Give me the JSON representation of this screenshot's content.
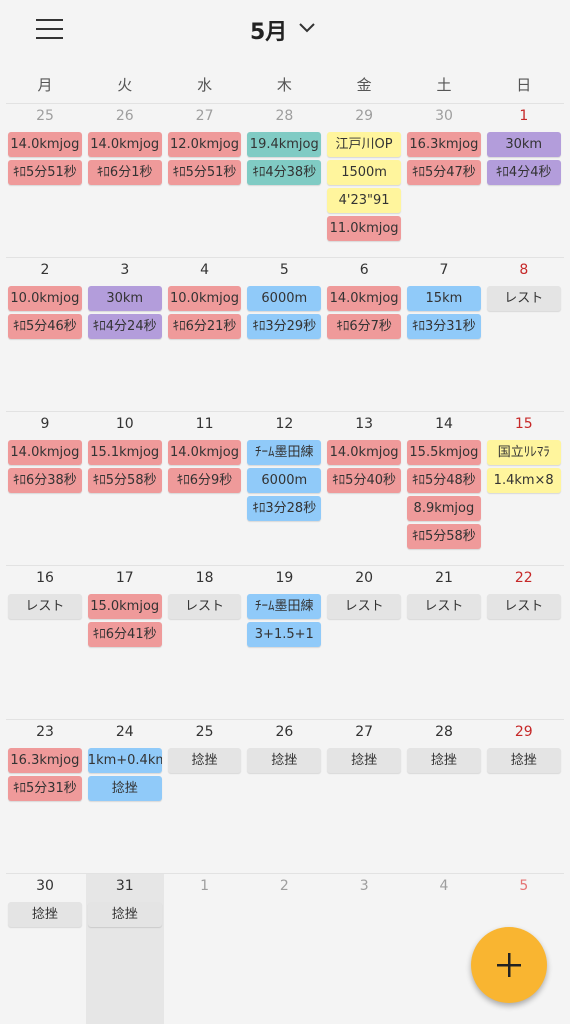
{
  "header": {
    "title": "5月"
  },
  "weekdays": [
    "月",
    "火",
    "水",
    "木",
    "金",
    "土",
    "日"
  ],
  "today": {
    "week": 5,
    "col": 1
  },
  "weeks": [
    [
      {
        "day": "25",
        "color": "#9e9e9e",
        "events": [
          {
            "text": "14.0kmjog",
            "color": "#ef9a9a"
          },
          {
            "text": "ｷﾛ5分51秒",
            "color": "#ef9a9a"
          }
        ]
      },
      {
        "day": "26",
        "color": "#9e9e9e",
        "events": [
          {
            "text": "14.0kmjog",
            "color": "#ef9a9a"
          },
          {
            "text": "ｷﾛ6分1秒",
            "color": "#ef9a9a"
          }
        ]
      },
      {
        "day": "27",
        "color": "#9e9e9e",
        "events": [
          {
            "text": "12.0kmjog",
            "color": "#ef9a9a"
          },
          {
            "text": "ｷﾛ5分51秒",
            "color": "#ef9a9a"
          }
        ]
      },
      {
        "day": "28",
        "color": "#9e9e9e",
        "events": [
          {
            "text": "19.4kmjog",
            "color": "#80cbc4"
          },
          {
            "text": "ｷﾛ4分38秒",
            "color": "#80cbc4"
          }
        ]
      },
      {
        "day": "29",
        "color": "#9e9e9e",
        "events": [
          {
            "text": "江戸川OP",
            "color": "#fff59d"
          },
          {
            "text": "1500m",
            "color": "#fff59d"
          },
          {
            "text": "4'23\"91",
            "color": "#fff59d"
          },
          {
            "text": "11.0kmjog",
            "color": "#ef9a9a"
          }
        ]
      },
      {
        "day": "30",
        "color": "#9e9e9e",
        "events": [
          {
            "text": "16.3kmjog",
            "color": "#ef9a9a"
          },
          {
            "text": "ｷﾛ5分47秒",
            "color": "#ef9a9a"
          }
        ]
      },
      {
        "day": "1",
        "color": "#c62828",
        "events": [
          {
            "text": "30km",
            "color": "#b39ddb"
          },
          {
            "text": "ｷﾛ4分4秒",
            "color": "#b39ddb"
          }
        ]
      }
    ],
    [
      {
        "day": "2",
        "color": "#333333",
        "events": [
          {
            "text": "10.0kmjog",
            "color": "#ef9a9a"
          },
          {
            "text": "ｷﾛ5分46秒",
            "color": "#ef9a9a"
          }
        ]
      },
      {
        "day": "3",
        "color": "#333333",
        "events": [
          {
            "text": "30km",
            "color": "#b39ddb"
          },
          {
            "text": "ｷﾛ4分24秒",
            "color": "#b39ddb"
          }
        ]
      },
      {
        "day": "4",
        "color": "#333333",
        "events": [
          {
            "text": "10.0kmjog",
            "color": "#ef9a9a"
          },
          {
            "text": "ｷﾛ6分21秒",
            "color": "#ef9a9a"
          }
        ]
      },
      {
        "day": "5",
        "color": "#333333",
        "events": [
          {
            "text": "6000m",
            "color": "#90caf9"
          },
          {
            "text": "ｷﾛ3分29秒",
            "color": "#90caf9"
          }
        ]
      },
      {
        "day": "6",
        "color": "#333333",
        "events": [
          {
            "text": "14.0kmjog",
            "color": "#ef9a9a"
          },
          {
            "text": "ｷﾛ6分7秒",
            "color": "#ef9a9a"
          }
        ]
      },
      {
        "day": "7",
        "color": "#333333",
        "events": [
          {
            "text": "15km",
            "color": "#90caf9"
          },
          {
            "text": "ｷﾛ3分31秒",
            "color": "#90caf9"
          }
        ]
      },
      {
        "day": "8",
        "color": "#c62828",
        "events": [
          {
            "text": "レスト",
            "color": "#e4e4e4"
          }
        ]
      }
    ],
    [
      {
        "day": "9",
        "color": "#333333",
        "events": [
          {
            "text": "14.0kmjog",
            "color": "#ef9a9a"
          },
          {
            "text": "ｷﾛ6分38秒",
            "color": "#ef9a9a"
          }
        ]
      },
      {
        "day": "10",
        "color": "#333333",
        "events": [
          {
            "text": "15.1kmjog",
            "color": "#ef9a9a"
          },
          {
            "text": "ｷﾛ5分58秒",
            "color": "#ef9a9a"
          }
        ]
      },
      {
        "day": "11",
        "color": "#333333",
        "events": [
          {
            "text": "14.0kmjog",
            "color": "#ef9a9a"
          },
          {
            "text": "ｷﾛ6分9秒",
            "color": "#ef9a9a"
          }
        ]
      },
      {
        "day": "12",
        "color": "#333333",
        "events": [
          {
            "text": "ﾁｰﾑ墨田練",
            "color": "#90caf9"
          },
          {
            "text": "6000m",
            "color": "#90caf9"
          },
          {
            "text": "ｷﾛ3分28秒",
            "color": "#90caf9"
          }
        ]
      },
      {
        "day": "13",
        "color": "#333333",
        "events": [
          {
            "text": "14.0kmjog",
            "color": "#ef9a9a"
          },
          {
            "text": "ｷﾛ5分40秒",
            "color": "#ef9a9a"
          }
        ]
      },
      {
        "day": "14",
        "color": "#333333",
        "events": [
          {
            "text": "15.5kmjog",
            "color": "#ef9a9a"
          },
          {
            "text": "ｷﾛ5分48秒",
            "color": "#ef9a9a"
          },
          {
            "text": "8.9kmjog",
            "color": "#ef9a9a"
          },
          {
            "text": "ｷﾛ5分58秒",
            "color": "#ef9a9a"
          }
        ]
      },
      {
        "day": "15",
        "color": "#c62828",
        "events": [
          {
            "text": "国立ﾘﾚﾏﾗ",
            "color": "#fff59d"
          },
          {
            "text": "1.4km×8",
            "color": "#fff59d"
          }
        ]
      }
    ],
    [
      {
        "day": "16",
        "color": "#333333",
        "events": [
          {
            "text": "レスト",
            "color": "#e4e4e4"
          }
        ]
      },
      {
        "day": "17",
        "color": "#333333",
        "events": [
          {
            "text": "15.0kmjog",
            "color": "#ef9a9a"
          },
          {
            "text": "ｷﾛ6分41秒",
            "color": "#ef9a9a"
          }
        ]
      },
      {
        "day": "18",
        "color": "#333333",
        "events": [
          {
            "text": "レスト",
            "color": "#e4e4e4"
          }
        ]
      },
      {
        "day": "19",
        "color": "#333333",
        "events": [
          {
            "text": "ﾁｰﾑ墨田練",
            "color": "#90caf9"
          },
          {
            "text": "3+1.5+1",
            "color": "#90caf9"
          }
        ]
      },
      {
        "day": "20",
        "color": "#333333",
        "events": [
          {
            "text": "レスト",
            "color": "#e4e4e4"
          }
        ]
      },
      {
        "day": "21",
        "color": "#333333",
        "events": [
          {
            "text": "レスト",
            "color": "#e4e4e4"
          }
        ]
      },
      {
        "day": "22",
        "color": "#c62828",
        "events": [
          {
            "text": "レスト",
            "color": "#e4e4e4"
          }
        ]
      }
    ],
    [
      {
        "day": "23",
        "color": "#333333",
        "events": [
          {
            "text": "16.3kmjog",
            "color": "#ef9a9a"
          },
          {
            "text": "ｷﾛ5分31秒",
            "color": "#ef9a9a"
          }
        ]
      },
      {
        "day": "24",
        "color": "#333333",
        "events": [
          {
            "text": "1km+0.4km",
            "color": "#90caf9"
          },
          {
            "text": "捻挫",
            "color": "#90caf9"
          }
        ]
      },
      {
        "day": "25",
        "color": "#333333",
        "events": [
          {
            "text": "捻挫",
            "color": "#e4e4e4"
          }
        ]
      },
      {
        "day": "26",
        "color": "#333333",
        "events": [
          {
            "text": "捻挫",
            "color": "#e4e4e4"
          }
        ]
      },
      {
        "day": "27",
        "color": "#333333",
        "events": [
          {
            "text": "捻挫",
            "color": "#e4e4e4"
          }
        ]
      },
      {
        "day": "28",
        "color": "#333333",
        "events": [
          {
            "text": "捻挫",
            "color": "#e4e4e4"
          }
        ]
      },
      {
        "day": "29",
        "color": "#c62828",
        "events": [
          {
            "text": "捻挫",
            "color": "#e4e4e4"
          }
        ]
      }
    ],
    [
      {
        "day": "30",
        "color": "#333333",
        "events": [
          {
            "text": "捻挫",
            "color": "#e4e4e4"
          }
        ]
      },
      {
        "day": "31",
        "color": "#333333",
        "events": [
          {
            "text": "捻挫",
            "color": "#e4e4e4"
          }
        ]
      },
      {
        "day": "1",
        "color": "#9e9e9e",
        "events": []
      },
      {
        "day": "2",
        "color": "#9e9e9e",
        "events": []
      },
      {
        "day": "3",
        "color": "#9e9e9e",
        "events": []
      },
      {
        "day": "4",
        "color": "#9e9e9e",
        "events": []
      },
      {
        "day": "5",
        "color": "#e57373",
        "events": []
      }
    ]
  ]
}
